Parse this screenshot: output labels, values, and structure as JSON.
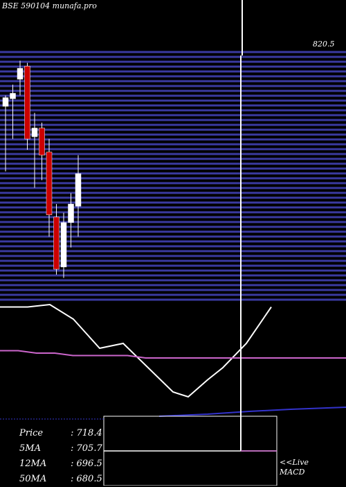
{
  "title": "BSE 590104  munafa.pro",
  "top_price_label": "820.5",
  "info": [
    {
      "key": "Price",
      "value": ": 718.4"
    },
    {
      "key": "5MA",
      "value": ": 705.7"
    },
    {
      "key": "12MA",
      "value": ": 696.5"
    },
    {
      "key": "50MA",
      "value": ": 680.5"
    }
  ],
  "live": {
    "line1": "<<Live",
    "line2": "MACD"
  },
  "colors": {
    "up": "#ffffff",
    "down": "#cc0000",
    "grid": "#3a3aa0",
    "ma_short": "#ffffff",
    "ma_long": "#cc66cc",
    "ma_blue": "#3333cc"
  },
  "chart_data": {
    "type": "candlestick",
    "ylim": [
      600,
      830
    ],
    "candles": [
      {
        "o": 780,
        "h": 790,
        "l": 720,
        "c": 788
      },
      {
        "o": 787,
        "h": 800,
        "l": 750,
        "c": 792
      },
      {
        "o": 805,
        "h": 822,
        "l": 790,
        "c": 815
      },
      {
        "o": 817,
        "h": 820,
        "l": 740,
        "c": 750
      },
      {
        "o": 752,
        "h": 774,
        "l": 705,
        "c": 760
      },
      {
        "o": 760,
        "h": 765,
        "l": 712,
        "c": 735
      },
      {
        "o": 738,
        "h": 750,
        "l": 660,
        "c": 680
      },
      {
        "o": 678,
        "h": 690,
        "l": 625,
        "c": 630
      },
      {
        "o": 632,
        "h": 682,
        "l": 622,
        "c": 673
      },
      {
        "o": 673,
        "h": 700,
        "l": 650,
        "c": 690
      },
      {
        "o": 688,
        "h": 735,
        "l": 660,
        "c": 718
      }
    ],
    "ma_short": [
      705,
      705,
      706,
      700,
      688,
      690,
      680,
      670,
      668,
      675,
      680,
      690,
      705
    ],
    "ma_long": [
      687,
      687,
      686,
      686,
      685,
      685,
      685,
      685,
      684,
      684,
      684,
      684,
      684,
      684,
      684,
      684,
      684,
      684,
      684,
      684
    ]
  }
}
